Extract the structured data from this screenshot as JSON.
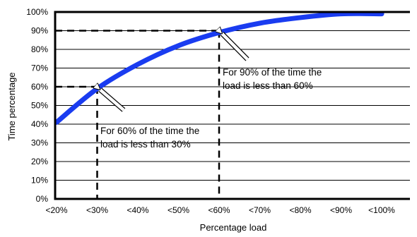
{
  "chart_data": {
    "type": "line",
    "title": "",
    "xlabel": "Percentage load",
    "ylabel": "Time percentage",
    "categories": [
      "<20%",
      "<30%",
      "<40%",
      "<50%",
      "<60%",
      "<70%",
      "<80%",
      "<90%",
      "<100%"
    ],
    "y_ticks": [
      "0%",
      "10%",
      "20%",
      "30%",
      "40%",
      "50%",
      "60%",
      "70%",
      "80%",
      "90%",
      "100%"
    ],
    "ylim": [
      0,
      100
    ],
    "grid": "horizontal",
    "series": [
      {
        "values": [
          41,
          59,
          72,
          82,
          89,
          94,
          97,
          99,
          99
        ],
        "color": "#1a3cf0"
      }
    ],
    "reference_points": [
      {
        "category": "<30%",
        "value": 60
      },
      {
        "category": "<60%",
        "value": 90
      }
    ],
    "annotations": [
      {
        "lines": [
          "For 60% of the time the",
          "load is less than 30%"
        ]
      },
      {
        "lines": [
          "For 90% of the time the",
          "load is less than 60%"
        ]
      }
    ]
  }
}
